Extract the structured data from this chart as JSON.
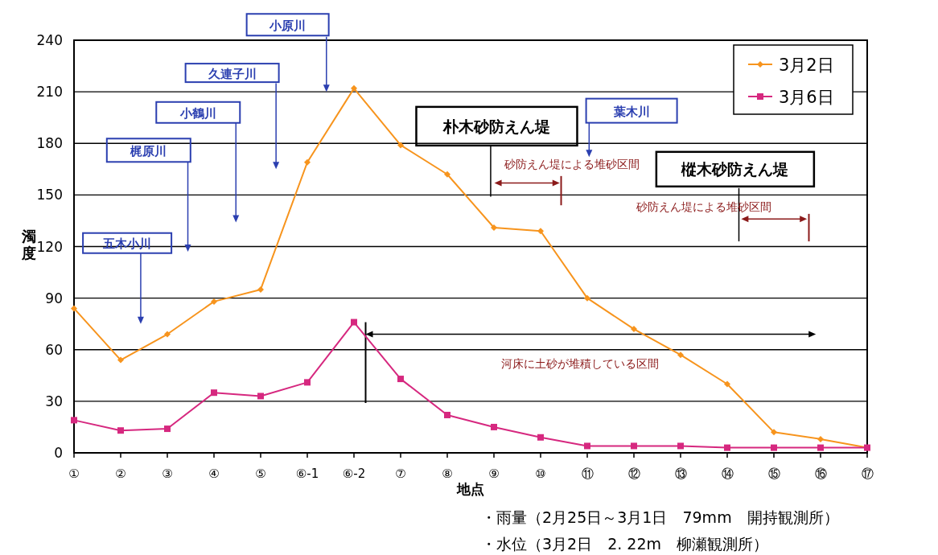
{
  "chart_data": {
    "type": "line",
    "xlabel": "地点",
    "ylabel": "濁度",
    "categories": [
      "①",
      "②",
      "③",
      "④",
      "⑤",
      "⑥-1",
      "⑥-2",
      "⑦",
      "⑧",
      "⑨",
      "⑩",
      "⑪",
      "⑫",
      "⑬",
      "⑭",
      "⑮",
      "⑯",
      "⑰"
    ],
    "series": [
      {
        "name": "3月2日",
        "color": "#f7941d",
        "marker": "diamond",
        "values": [
          84,
          54,
          69,
          88,
          95,
          169,
          212,
          179,
          162,
          131,
          129,
          90,
          72,
          57,
          40,
          12,
          8,
          3
        ]
      },
      {
        "name": "3月6日",
        "color": "#d6287f",
        "marker": "square",
        "values": [
          19,
          13,
          14,
          35,
          33,
          41,
          76,
          43,
          22,
          15,
          9,
          4,
          4,
          4,
          3,
          3,
          3,
          3
        ]
      }
    ],
    "ylim": [
      0,
      240
    ],
    "yticks": [
      0,
      30,
      60,
      90,
      120,
      150,
      180,
      210,
      240
    ],
    "grid": "y",
    "legend": "top right",
    "annotations": [
      "五木小川",
      "梶原川",
      "小鶴川",
      "久連子川",
      "小原川",
      "朴木砂防えん堤",
      "葉木川",
      "砂防えん堤による堆砂区間",
      "樅木砂防えん堤",
      "砂防えん堤による堆砂区間",
      "河床に土砂が堆積している区間",
      "・雨量（2月25日～3月1日　79mm　開持観測所）",
      "・水位（3月2日　2. 22m　柳瀬観測所）"
    ]
  }
}
